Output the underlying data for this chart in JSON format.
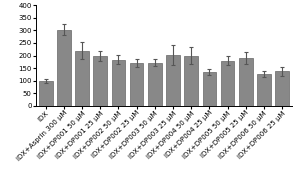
{
  "categories": [
    "IDX",
    "IDX+Asprin 300 μM",
    "IDX+DP001 50 μM",
    "IDX+DP001 25 μM",
    "IDX+DP002 50 μM",
    "IDX+DP002 25 μM",
    "IDX+DP003 50 μM",
    "IDX+DP003 25 μM",
    "IDX+DP004 50 μM",
    "IDX+DP004 25 μM",
    "IDX+DP005 50 μM",
    "IDX+DP005 25 μM",
    "IDX+DP006 50 μM",
    "IDX+DP006 25 μM"
  ],
  "values": [
    100,
    302,
    220,
    197,
    183,
    170,
    172,
    203,
    200,
    135,
    180,
    190,
    127,
    138
  ],
  "errors": [
    8,
    22,
    35,
    20,
    18,
    15,
    15,
    40,
    35,
    12,
    18,
    25,
    12,
    18
  ],
  "bar_color": "#888888",
  "bar_edgecolor": "#666666",
  "ylim": [
    0,
    400
  ],
  "yticks": [
    0,
    50,
    100,
    150,
    200,
    250,
    300,
    350,
    400
  ],
  "background_color": "#ffffff",
  "tick_fontsize": 5.0,
  "label_rotation": 45
}
